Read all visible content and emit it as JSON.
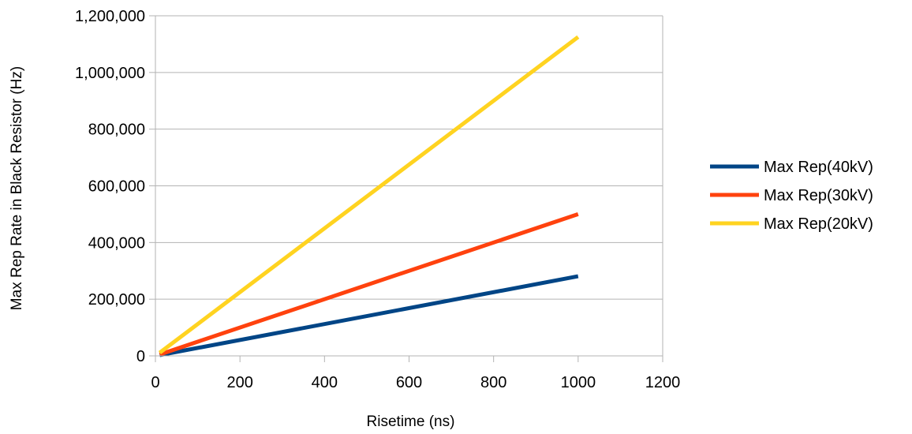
{
  "chart_data": {
    "type": "line",
    "title": "",
    "xlabel": "Risetime (ns)",
    "ylabel": "Max Rep Rate in Black Resistor (Hz)",
    "xlim": [
      0,
      1200
    ],
    "ylim": [
      0,
      1200000
    ],
    "x_ticks": [
      "0",
      "200",
      "400",
      "600",
      "800",
      "1000",
      "1200"
    ],
    "y_ticks": [
      "0",
      "200,000",
      "400,000",
      "600,000",
      "800,000",
      "1,000,000",
      "1,200,000"
    ],
    "x_tick_values": [
      0,
      200,
      400,
      600,
      800,
      1000,
      1200
    ],
    "y_tick_values": [
      0,
      200000,
      400000,
      600000,
      800000,
      1000000,
      1200000
    ],
    "grid": "horizontal",
    "legend": "right",
    "series": [
      {
        "name": "Max Rep(40kV)",
        "color": "#004586",
        "x": [
          10,
          1000
        ],
        "y": [
          2800,
          281000
        ]
      },
      {
        "name": "Max Rep(30kV)",
        "color": "#ff420e",
        "x": [
          10,
          1000
        ],
        "y": [
          5000,
          500000
        ]
      },
      {
        "name": "Max Rep(20kV)",
        "color": "#ffd320",
        "x": [
          10,
          1000
        ],
        "y": [
          11250,
          1125000
        ]
      }
    ]
  }
}
